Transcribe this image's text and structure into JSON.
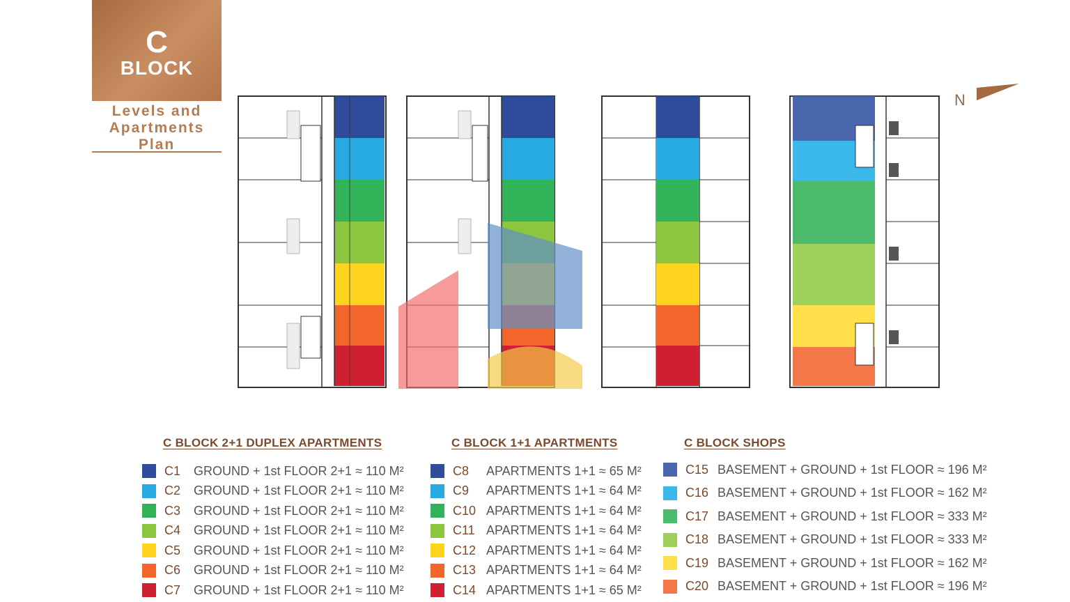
{
  "badge": {
    "letter": "C",
    "word": "BLOCK"
  },
  "subtitle": {
    "line1": "Levels and",
    "line2": "Apartments",
    "line3": "Plan"
  },
  "compass": {
    "label": "N"
  },
  "colors": {
    "c1": "#2e4c9a",
    "c2": "#27a9e1",
    "c3": "#32b35a",
    "c4": "#8cc63f",
    "c5": "#ffd41f",
    "c6": "#f2652b",
    "c7": "#cf2030",
    "brand": "#b27c55"
  },
  "legends": {
    "duplex": {
      "title": "C BLOCK 2+1 DUPLEX APARTMENTS",
      "items": [
        {
          "code": "C1",
          "desc": "GROUND + 1st FLOOR  2+1 ≈ 110 M²",
          "color": "#2e4c9a"
        },
        {
          "code": "C2",
          "desc": "GROUND + 1st FLOOR  2+1 ≈ 110 M²",
          "color": "#27a9e1"
        },
        {
          "code": "C3",
          "desc": "GROUND + 1st FLOOR  2+1 ≈ 110 M²",
          "color": "#32b35a"
        },
        {
          "code": "C4",
          "desc": "GROUND + 1st FLOOR  2+1 ≈ 110 M²",
          "color": "#8cc63f"
        },
        {
          "code": "C5",
          "desc": "GROUND + 1st FLOOR  2+1 ≈ 110 M²",
          "color": "#ffd41f"
        },
        {
          "code": "C6",
          "desc": "GROUND + 1st FLOOR  2+1 ≈ 110 M²",
          "color": "#f2652b"
        },
        {
          "code": "C7",
          "desc": "GROUND + 1st FLOOR  2+1 ≈ 110 M²",
          "color": "#cf2030"
        }
      ]
    },
    "apartments": {
      "title": "C BLOCK 1+1 APARTMENTS",
      "items": [
        {
          "code": "C8",
          "desc": "APARTMENTS 1+1 ≈ 65 M²",
          "color": "#2e4c9a"
        },
        {
          "code": "C9",
          "desc": "APARTMENTS 1+1 ≈ 64 M²",
          "color": "#27a9e1"
        },
        {
          "code": "C10",
          "desc": "APARTMENTS 1+1 ≈ 64 M²",
          "color": "#32b35a"
        },
        {
          "code": "C11",
          "desc": "APARTMENTS 1+1 ≈ 64 M²",
          "color": "#8cc63f"
        },
        {
          "code": "C12",
          "desc": "APARTMENTS 1+1 ≈ 64 M²",
          "color": "#ffd41f"
        },
        {
          "code": "C13",
          "desc": "APARTMENTS 1+1 ≈ 64 M²",
          "color": "#f2652b"
        },
        {
          "code": "C14",
          "desc": "APARTMENTS 1+1 ≈ 65 M²",
          "color": "#cf2030"
        }
      ]
    },
    "shops": {
      "title": "C BLOCK SHOPS",
      "items": [
        {
          "code": "C15",
          "desc": "BASEMENT + GROUND + 1st FLOOR ≈ 196 M²",
          "color": "#4a66ad"
        },
        {
          "code": "C16",
          "desc": "BASEMENT + GROUND + 1st FLOOR ≈ 162 M²",
          "color": "#3bb8ea"
        },
        {
          "code": "C17",
          "desc": "BASEMENT + GROUND + 1st FLOOR ≈ 333 M²",
          "color": "#4dbb6c"
        },
        {
          "code": "C18",
          "desc": "BASEMENT + GROUND + 1st FLOOR ≈ 333 M²",
          "color": "#9fd05a"
        },
        {
          "code": "C19",
          "desc": "BASEMENT + GROUND + 1st FLOOR ≈ 162 M²",
          "color": "#ffe04a"
        },
        {
          "code": "C20",
          "desc": "BASEMENT + GROUND + 1st FLOOR ≈ 196 M²",
          "color": "#f4774a"
        }
      ]
    }
  }
}
